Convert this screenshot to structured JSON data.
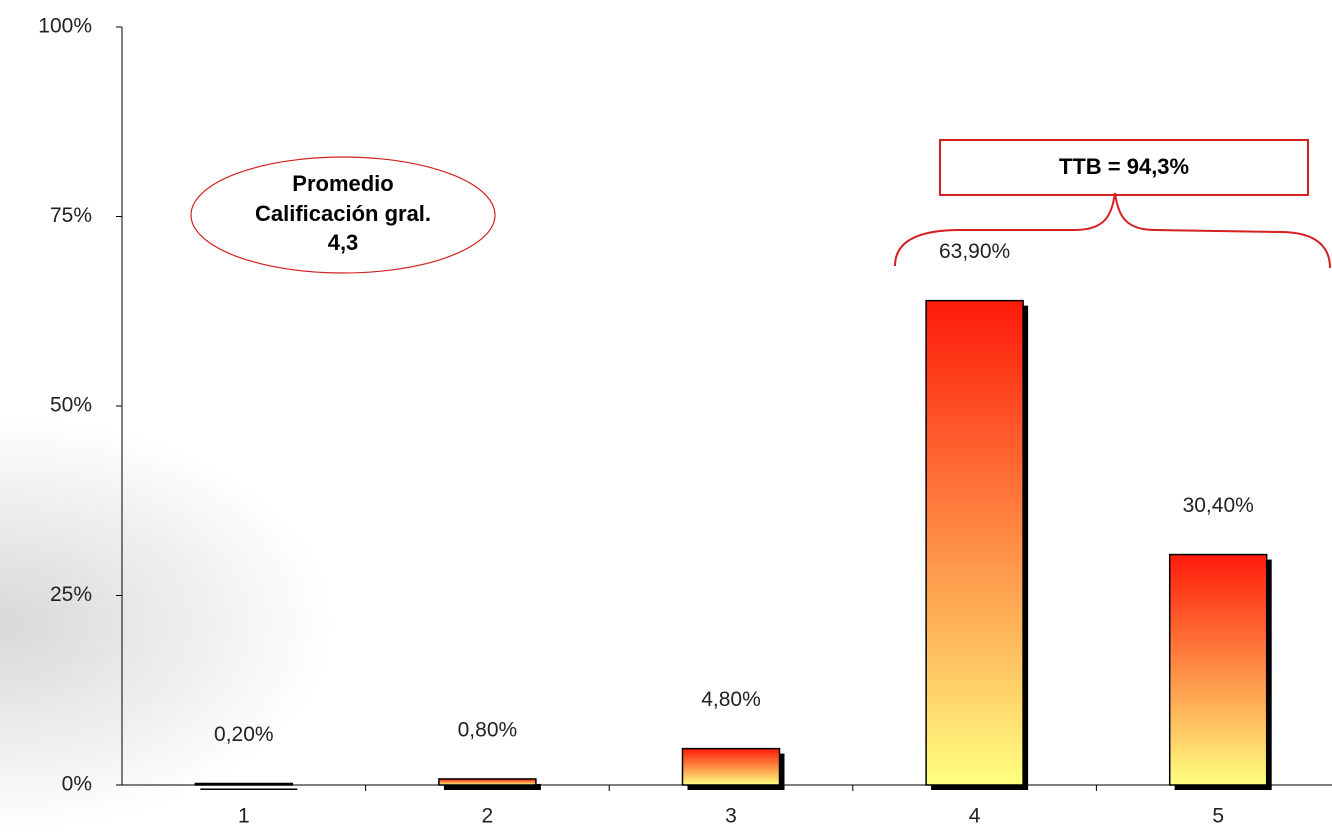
{
  "chart_data": {
    "type": "bar",
    "categories": [
      "1",
      "2",
      "3",
      "4",
      "5"
    ],
    "values": [
      0.2,
      0.8,
      4.8,
      63.9,
      30.4
    ],
    "value_labels": [
      "0,20%",
      "0,80%",
      "4,80%",
      "63,90%",
      "30,40%"
    ],
    "gradient_colors": [
      "#ff1a0a",
      "#ffff80"
    ],
    "ylim": [
      0,
      100
    ],
    "yticks": [
      {
        "value": 0,
        "label": "0%"
      },
      {
        "value": 25,
        "label": "25%"
      },
      {
        "value": 50,
        "label": "50%"
      },
      {
        "value": 75,
        "label": "75%"
      },
      {
        "value": 100,
        "label": "100%"
      }
    ],
    "annotations": [
      "Promedio",
      "Calificación gral.",
      "4,3"
    ],
    "callout": "TTB = 94,3%"
  }
}
